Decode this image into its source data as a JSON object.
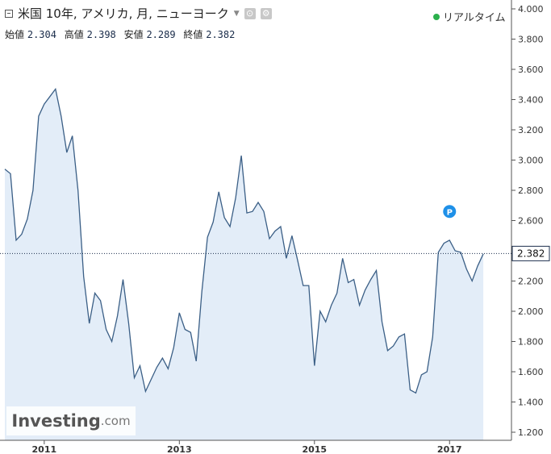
{
  "header": {
    "title": "米国 10年, アメリカ, 月, ニューヨーク",
    "realtime_label": "リアルタイム"
  },
  "ohlc": {
    "open_label": "始値",
    "open": "2.304",
    "high_label": "高値",
    "high": "2.398",
    "low_label": "安値",
    "low": "2.289",
    "close_label": "終値",
    "close": "2.382"
  },
  "logo": {
    "main": "Investing",
    "sub": ".com"
  },
  "colors": {
    "line": "#3b5f86",
    "fill": "#e3edf8",
    "axis": "#555555",
    "realtime_dot": "#2bb04c",
    "marker": "#1e90e8"
  },
  "icons": [
    "collapse-icon",
    "settings-icon",
    "gear-icon",
    "realtime-dot-icon",
    "p-marker-icon"
  ],
  "chart_data": {
    "type": "area",
    "title": "米国 10年, アメリカ, 月, ニューヨーク",
    "xlabel": "",
    "ylabel": "",
    "xlim": [
      "2010-06",
      "2017-12"
    ],
    "ylim": [
      1.2,
      4.0
    ],
    "x_ticks": [
      "2011",
      "2013",
      "2015",
      "2017"
    ],
    "y_ticks": [
      "4.000",
      "3.800",
      "3.600",
      "3.400",
      "3.200",
      "3.000",
      "2.800",
      "2.600",
      "2.400",
      "2.200",
      "2.000",
      "1.800",
      "1.600",
      "1.400",
      "1.200"
    ],
    "current_value": 2.382,
    "current_label": "2.382",
    "marker_label": "P",
    "marker_x": "2017-01",
    "marker_y": 2.66,
    "grid": false,
    "legend": "none",
    "x": [
      "2010-06",
      "2010-07",
      "2010-08",
      "2010-09",
      "2010-10",
      "2010-11",
      "2010-12",
      "2011-01",
      "2011-02",
      "2011-03",
      "2011-04",
      "2011-05",
      "2011-06",
      "2011-07",
      "2011-08",
      "2011-09",
      "2011-10",
      "2011-11",
      "2011-12",
      "2012-01",
      "2012-02",
      "2012-03",
      "2012-04",
      "2012-05",
      "2012-06",
      "2012-07",
      "2012-08",
      "2012-09",
      "2012-10",
      "2012-11",
      "2012-12",
      "2013-01",
      "2013-02",
      "2013-03",
      "2013-04",
      "2013-05",
      "2013-06",
      "2013-07",
      "2013-08",
      "2013-09",
      "2013-10",
      "2013-11",
      "2013-12",
      "2014-01",
      "2014-02",
      "2014-03",
      "2014-04",
      "2014-05",
      "2014-06",
      "2014-07",
      "2014-08",
      "2014-09",
      "2014-10",
      "2014-11",
      "2014-12",
      "2015-01",
      "2015-02",
      "2015-03",
      "2015-04",
      "2015-05",
      "2015-06",
      "2015-07",
      "2015-08",
      "2015-09",
      "2015-10",
      "2015-11",
      "2015-12",
      "2016-01",
      "2016-02",
      "2016-03",
      "2016-04",
      "2016-05",
      "2016-06",
      "2016-07",
      "2016-08",
      "2016-09",
      "2016-10",
      "2016-11",
      "2016-12",
      "2017-01",
      "2017-02",
      "2017-03",
      "2017-04",
      "2017-05",
      "2017-06",
      "2017-07"
    ],
    "values": [
      2.94,
      2.91,
      2.47,
      2.51,
      2.61,
      2.8,
      3.29,
      3.37,
      3.42,
      3.47,
      3.29,
      3.05,
      3.16,
      2.8,
      2.23,
      1.92,
      2.12,
      2.07,
      1.88,
      1.8,
      1.97,
      2.21,
      1.92,
      1.56,
      1.64,
      1.47,
      1.55,
      1.63,
      1.69,
      1.62,
      1.76,
      1.99,
      1.88,
      1.86,
      1.67,
      2.13,
      2.49,
      2.59,
      2.79,
      2.62,
      2.56,
      2.75,
      3.03,
      2.65,
      2.66,
      2.72,
      2.66,
      2.48,
      2.53,
      2.56,
      2.35,
      2.5,
      2.34,
      2.17,
      2.17,
      1.64,
      2.0,
      1.93,
      2.04,
      2.12,
      2.35,
      2.19,
      2.21,
      2.04,
      2.14,
      2.21,
      2.27,
      1.93,
      1.74,
      1.77,
      1.83,
      1.85,
      1.48,
      1.46,
      1.58,
      1.6,
      1.83,
      2.39,
      2.45,
      2.47,
      2.4,
      2.39,
      2.28,
      2.2,
      2.3,
      2.38
    ]
  }
}
